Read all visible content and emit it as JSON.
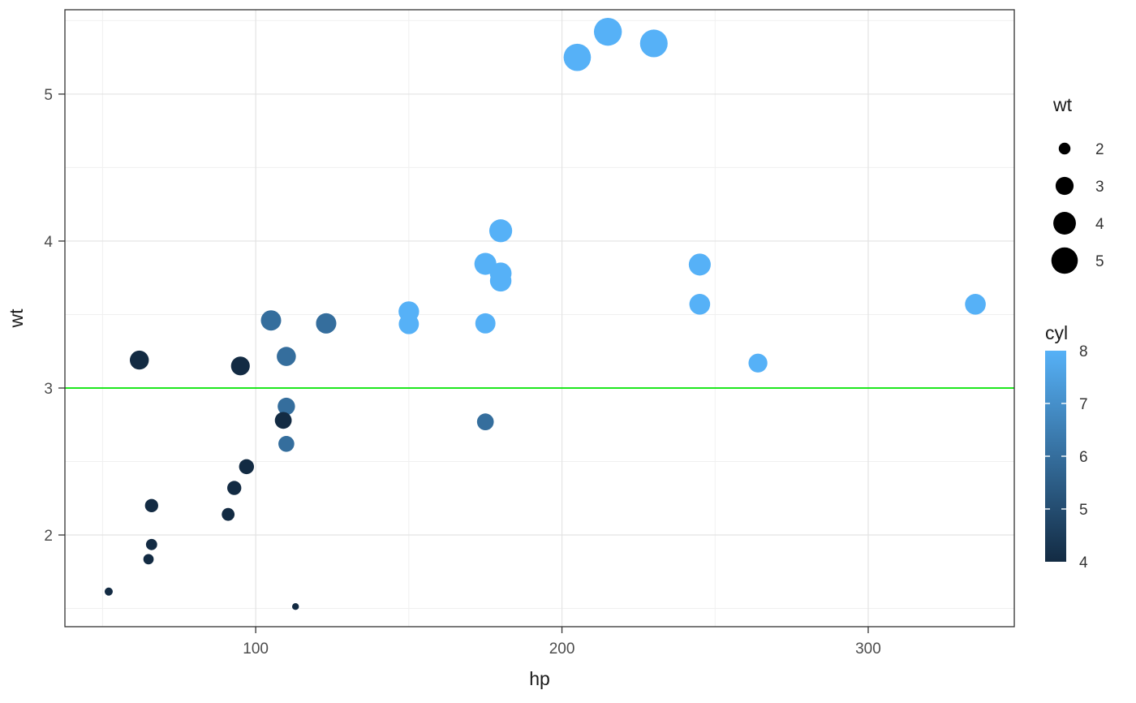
{
  "chart_data": {
    "type": "scatter",
    "title": "",
    "xlabel": "hp",
    "ylabel": "wt",
    "x_ticks": [
      100,
      200,
      300
    ],
    "x_minor_ticks": [
      50,
      150,
      250
    ],
    "y_ticks": [
      2,
      3,
      4,
      5
    ],
    "y_minor_ticks": [
      1.5,
      2.5,
      3.5,
      4.5,
      5.5
    ],
    "x_domain": [
      37.7,
      347.7
    ],
    "y_domain": [
      1.376,
      5.574
    ],
    "hline": {
      "y": 3,
      "color": "#00E500"
    },
    "grid": {
      "major_color": "#E3E3E3",
      "minor_color": "#F0F0F0",
      "panel_border": "#333333"
    },
    "axis_text_color": "#4D4D4D",
    "axis_title_color": "#1A1A1A",
    "size_legend": {
      "title": "wt",
      "ticks": [
        2,
        3,
        4,
        5
      ],
      "domain": [
        1.513,
        5.424
      ],
      "key_color": "#000000"
    },
    "color_legend": {
      "title": "cyl",
      "ticks": [
        8,
        7,
        6,
        5,
        4
      ],
      "tick_marks": [
        5,
        6,
        7
      ],
      "domain": [
        4,
        8
      ],
      "low": "#132B43",
      "high": "#56B1F7"
    },
    "points": [
      {
        "hp": 110,
        "wt": 2.62,
        "cyl": 6
      },
      {
        "hp": 110,
        "wt": 2.875,
        "cyl": 6
      },
      {
        "hp": 93,
        "wt": 2.32,
        "cyl": 4
      },
      {
        "hp": 110,
        "wt": 3.215,
        "cyl": 6
      },
      {
        "hp": 175,
        "wt": 3.44,
        "cyl": 8
      },
      {
        "hp": 105,
        "wt": 3.46,
        "cyl": 6
      },
      {
        "hp": 245,
        "wt": 3.57,
        "cyl": 8
      },
      {
        "hp": 62,
        "wt": 3.19,
        "cyl": 4
      },
      {
        "hp": 95,
        "wt": 3.15,
        "cyl": 4
      },
      {
        "hp": 123,
        "wt": 3.44,
        "cyl": 6
      },
      {
        "hp": 123,
        "wt": 3.44,
        "cyl": 6
      },
      {
        "hp": 180,
        "wt": 4.07,
        "cyl": 8
      },
      {
        "hp": 180,
        "wt": 3.73,
        "cyl": 8
      },
      {
        "hp": 180,
        "wt": 3.78,
        "cyl": 8
      },
      {
        "hp": 205,
        "wt": 5.25,
        "cyl": 8
      },
      {
        "hp": 215,
        "wt": 5.424,
        "cyl": 8
      },
      {
        "hp": 230,
        "wt": 5.345,
        "cyl": 8
      },
      {
        "hp": 66,
        "wt": 2.2,
        "cyl": 4
      },
      {
        "hp": 52,
        "wt": 1.615,
        "cyl": 4
      },
      {
        "hp": 65,
        "wt": 1.835,
        "cyl": 4
      },
      {
        "hp": 97,
        "wt": 2.465,
        "cyl": 4
      },
      {
        "hp": 150,
        "wt": 3.52,
        "cyl": 8
      },
      {
        "hp": 150,
        "wt": 3.435,
        "cyl": 8
      },
      {
        "hp": 245,
        "wt": 3.84,
        "cyl": 8
      },
      {
        "hp": 175,
        "wt": 3.845,
        "cyl": 8
      },
      {
        "hp": 66,
        "wt": 1.935,
        "cyl": 4
      },
      {
        "hp": 91,
        "wt": 2.14,
        "cyl": 4
      },
      {
        "hp": 113,
        "wt": 1.513,
        "cyl": 4
      },
      {
        "hp": 264,
        "wt": 3.17,
        "cyl": 8
      },
      {
        "hp": 175,
        "wt": 2.77,
        "cyl": 6
      },
      {
        "hp": 335,
        "wt": 3.57,
        "cyl": 8
      },
      {
        "hp": 109,
        "wt": 2.78,
        "cyl": 4
      }
    ]
  }
}
